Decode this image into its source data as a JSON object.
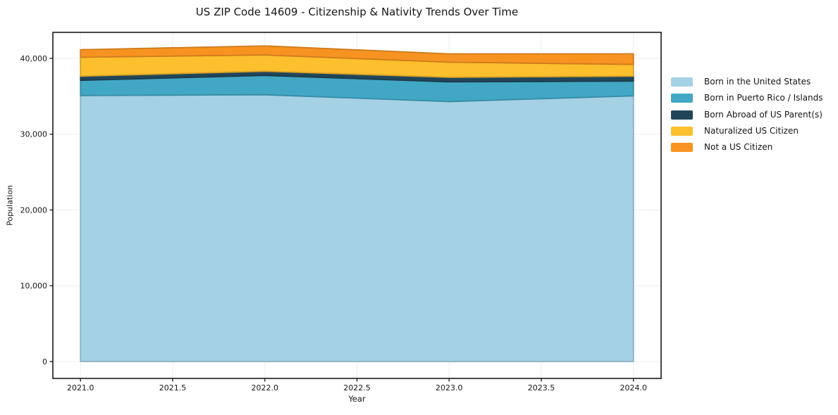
{
  "chart_data": {
    "type": "area",
    "stacked": true,
    "title": "US ZIP Code 14609 - Citizenship & Nativity Trends Over Time",
    "xlabel": "Year",
    "ylabel": "Population",
    "x": [
      2021,
      2022,
      2023,
      2024
    ],
    "xlim": [
      2020.85,
      2024.15
    ],
    "ylim": [
      -2228,
      43434
    ],
    "x_ticks": [
      2021.0,
      2021.5,
      2022.0,
      2022.5,
      2023.0,
      2023.5,
      2024.0
    ],
    "x_tick_labels": [
      "2021.0",
      "2021.5",
      "2022.0",
      "2022.5",
      "2023.0",
      "2023.5",
      "2024.0"
    ],
    "y_ticks": [
      0,
      10000,
      20000,
      30000,
      40000
    ],
    "y_tick_labels": [
      "0",
      "10,000",
      "20,000",
      "30,000",
      "40,000"
    ],
    "grid": true,
    "legend_position": "right-outside",
    "series": [
      {
        "name": "Born in the United States",
        "color": "#a5d1e5",
        "values": [
          35100,
          35200,
          34300,
          35050
        ]
      },
      {
        "name": "Born in Puerto Rico / Islands",
        "color": "#41a7c4",
        "values": [
          2000,
          2550,
          2600,
          1950
        ]
      },
      {
        "name": "Born Abroad of US Parent(s)",
        "color": "#21465a",
        "values": [
          550,
          550,
          600,
          650
        ]
      },
      {
        "name": "Naturalized US Citizen",
        "color": "#fcbf2d",
        "values": [
          2500,
          2150,
          2000,
          1550
        ]
      },
      {
        "name": "Not a US Citizen",
        "color": "#f79321",
        "values": [
          1000,
          1200,
          1100,
          1400
        ]
      }
    ]
  },
  "colors": {
    "grid": "#ededed",
    "frame": "#1a1a1a",
    "tick": "#161616",
    "text": "#151515"
  }
}
